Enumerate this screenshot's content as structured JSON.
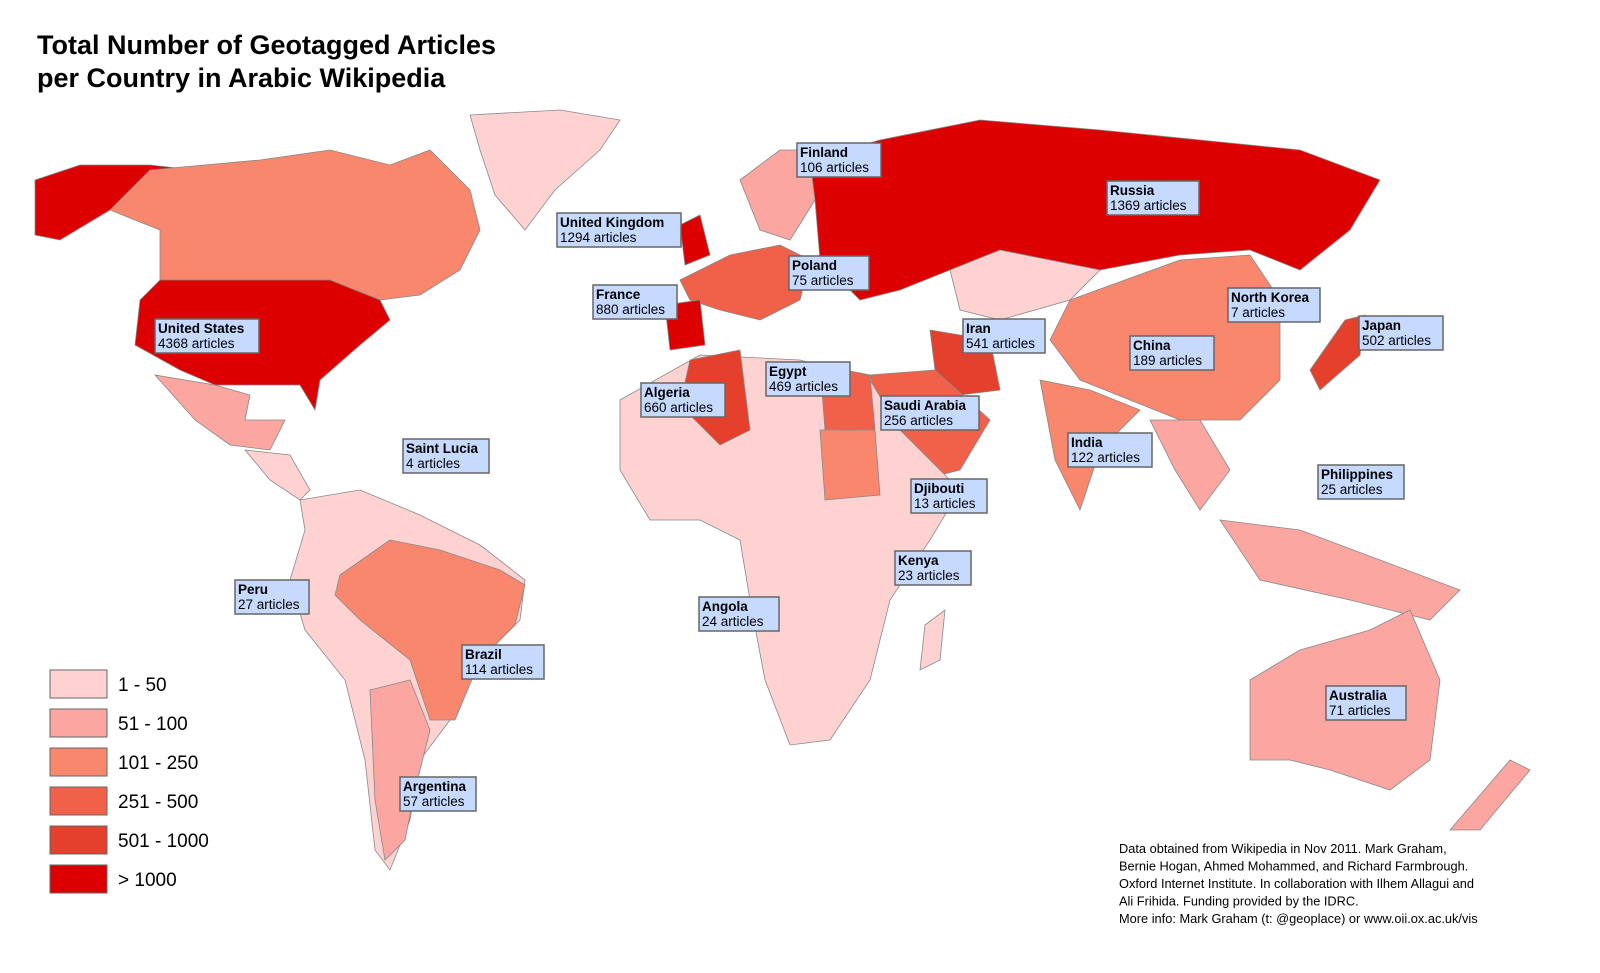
{
  "title": [
    "Total Number of Geotagged Articles",
    "per Country in Arabic Wikipedia"
  ],
  "legend": [
    {
      "label": "1 - 50",
      "color": "#ffd2d2"
    },
    {
      "label": "51 - 100",
      "color": "#fba6a0"
    },
    {
      "label": "101 - 250",
      "color": "#f8876e"
    },
    {
      "label": "251 - 500",
      "color": "#f1614a"
    },
    {
      "label": "501 - 1000",
      "color": "#e4402b"
    },
    {
      "label": "> 1000",
      "color": "#dc0000"
    }
  ],
  "labels": [
    {
      "name": "Finland",
      "text": "106 articles"
    },
    {
      "name": "United Kingdom",
      "text": "1294 articles"
    },
    {
      "name": "Russia",
      "text": "1369 articles"
    },
    {
      "name": "Poland",
      "text": "75 articles"
    },
    {
      "name": "France",
      "text": "880 articles"
    },
    {
      "name": "North Korea",
      "text": "7 articles"
    },
    {
      "name": "United States",
      "text": "4368 articles"
    },
    {
      "name": "Iran",
      "text": "541 articles"
    },
    {
      "name": "Japan",
      "text": "502 articles"
    },
    {
      "name": "China",
      "text": "189 articles"
    },
    {
      "name": "Egypt",
      "text": "469 articles"
    },
    {
      "name": "Algeria",
      "text": "660 articles"
    },
    {
      "name": "Saudi Arabia",
      "text": "256 articles"
    },
    {
      "name": "Saint Lucia",
      "text": "4 articles"
    },
    {
      "name": "India",
      "text": "122 articles"
    },
    {
      "name": "Philippines",
      "text": "25 articles"
    },
    {
      "name": "Djibouti",
      "text": "13 articles"
    },
    {
      "name": "Kenya",
      "text": "23 articles"
    },
    {
      "name": "Peru",
      "text": "27 articles"
    },
    {
      "name": "Angola",
      "text": "24 articles"
    },
    {
      "name": "Brazil",
      "text": "114 articles"
    },
    {
      "name": "Australia",
      "text": "71 articles"
    },
    {
      "name": "Argentina",
      "text": "57 articles"
    }
  ],
  "credits": [
    "Data obtained from Wikipedia in Nov 2011. Mark Graham,",
    "Bernie Hogan, Ahmed Mohammed, and Richard Farmbrough.",
    "Oxford Internet Institute. In collaboration with Ilhem Allagui and",
    "Ali Frihida. Funding provided by the IDRC.",
    "More info: Mark Graham (t: @geoplace) or www.oii.ox.ac.uk/vis"
  ]
}
